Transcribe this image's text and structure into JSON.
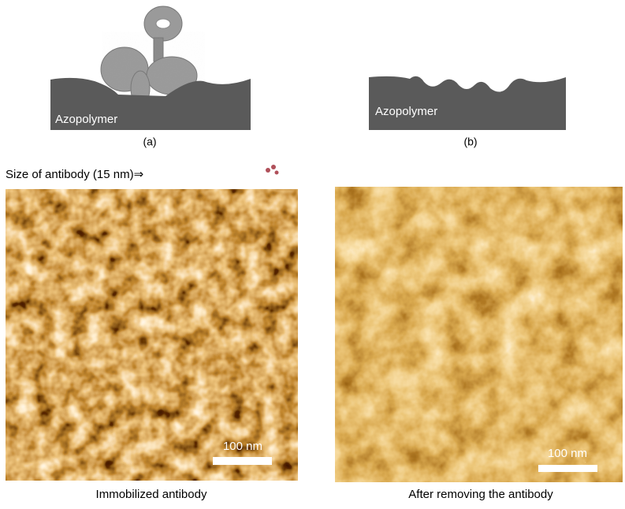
{
  "panel_a": {
    "substrate_label": "Azopolymer",
    "caption": "(a)"
  },
  "panel_b": {
    "substrate_label": "Azopolymer",
    "caption": "(b)"
  },
  "size_note": "Size of antibody (15 nm)⇒",
  "image_left": {
    "scale_bar": "100 nm",
    "caption": "Immobilized antibody"
  },
  "image_right": {
    "scale_bar": "100 nm",
    "caption": "After removing the antibody"
  }
}
